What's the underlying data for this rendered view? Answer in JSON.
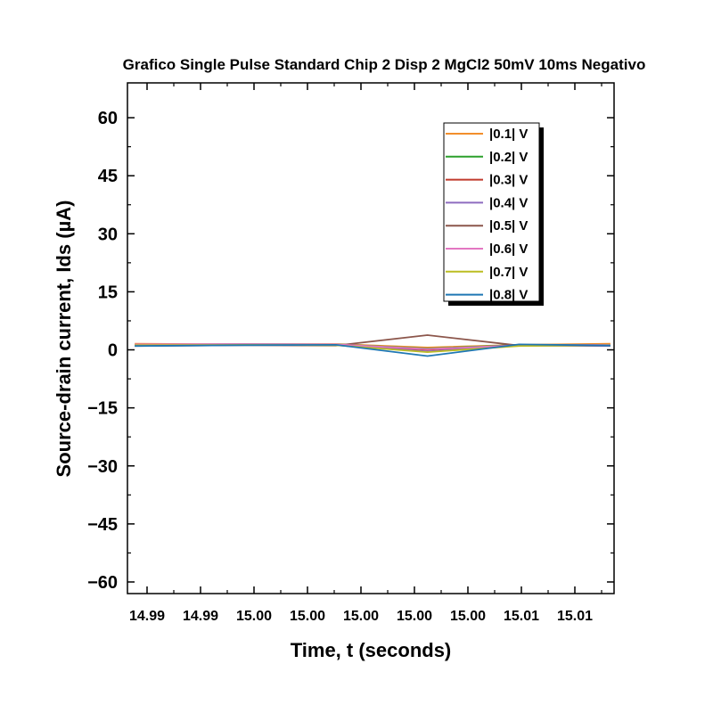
{
  "chart_data": {
    "type": "line",
    "title": "Grafico Single Pulse Standard Chip 2 Disp 2 MgCl2 50mV 10ms Negativo",
    "xlabel": "Time, t (seconds)",
    "ylabel": "Source-drain current, Ids (µA)",
    "x_tick_labels": [
      "14.99",
      "14.99",
      "15.00",
      "15.00",
      "15.00",
      "15.00",
      "15.00",
      "15.01",
      "15.01"
    ],
    "y_ticks": [
      60,
      45,
      30,
      15,
      0,
      -15,
      -30,
      -45,
      -60
    ],
    "y_tick_labels": [
      "60",
      "45",
      "30",
      "15",
      "0",
      "−15",
      "−30",
      "−45",
      "−60"
    ],
    "ylim": [
      -63,
      69
    ],
    "x": [
      14.99,
      14.996,
      15.001,
      15.006,
      15.011,
      15.016
    ],
    "xlim": [
      14.9896,
      15.0162
    ],
    "legend_position": "top-right",
    "grid": false,
    "series": [
      {
        "name": "|0.1| V",
        "color": "#f28e2b",
        "values": [
          1.6,
          1.4,
          1.5,
          0.6,
          1.3,
          1.6
        ]
      },
      {
        "name": "|0.2| V",
        "color": "#2ca02c",
        "values": [
          1.3,
          1.5,
          1.4,
          0.3,
          1.3,
          1.2
        ]
      },
      {
        "name": "|0.3| V",
        "color": "#c0392b",
        "values": [
          1.2,
          1.4,
          1.3,
          0.0,
          1.2,
          1.1
        ]
      },
      {
        "name": "|0.4| V",
        "color": "#8e6cbf",
        "values": [
          1.1,
          1.3,
          1.2,
          -0.4,
          1.1,
          1.0
        ]
      },
      {
        "name": "|0.5| V",
        "color": "#8c564b",
        "values": [
          1.0,
          1.2,
          1.1,
          3.8,
          1.1,
          1.1
        ]
      },
      {
        "name": "|0.6| V",
        "color": "#e377c2",
        "values": [
          1.4,
          1.5,
          1.4,
          0.2,
          1.2,
          1.3
        ]
      },
      {
        "name": "|0.7| V",
        "color": "#bcbd22",
        "values": [
          1.2,
          1.3,
          1.2,
          -0.6,
          1.0,
          1.2
        ]
      },
      {
        "name": "|0.8| V",
        "color": "#1f77b4",
        "values": [
          1.0,
          1.2,
          1.3,
          -1.6,
          1.4,
          1.1
        ]
      }
    ]
  }
}
